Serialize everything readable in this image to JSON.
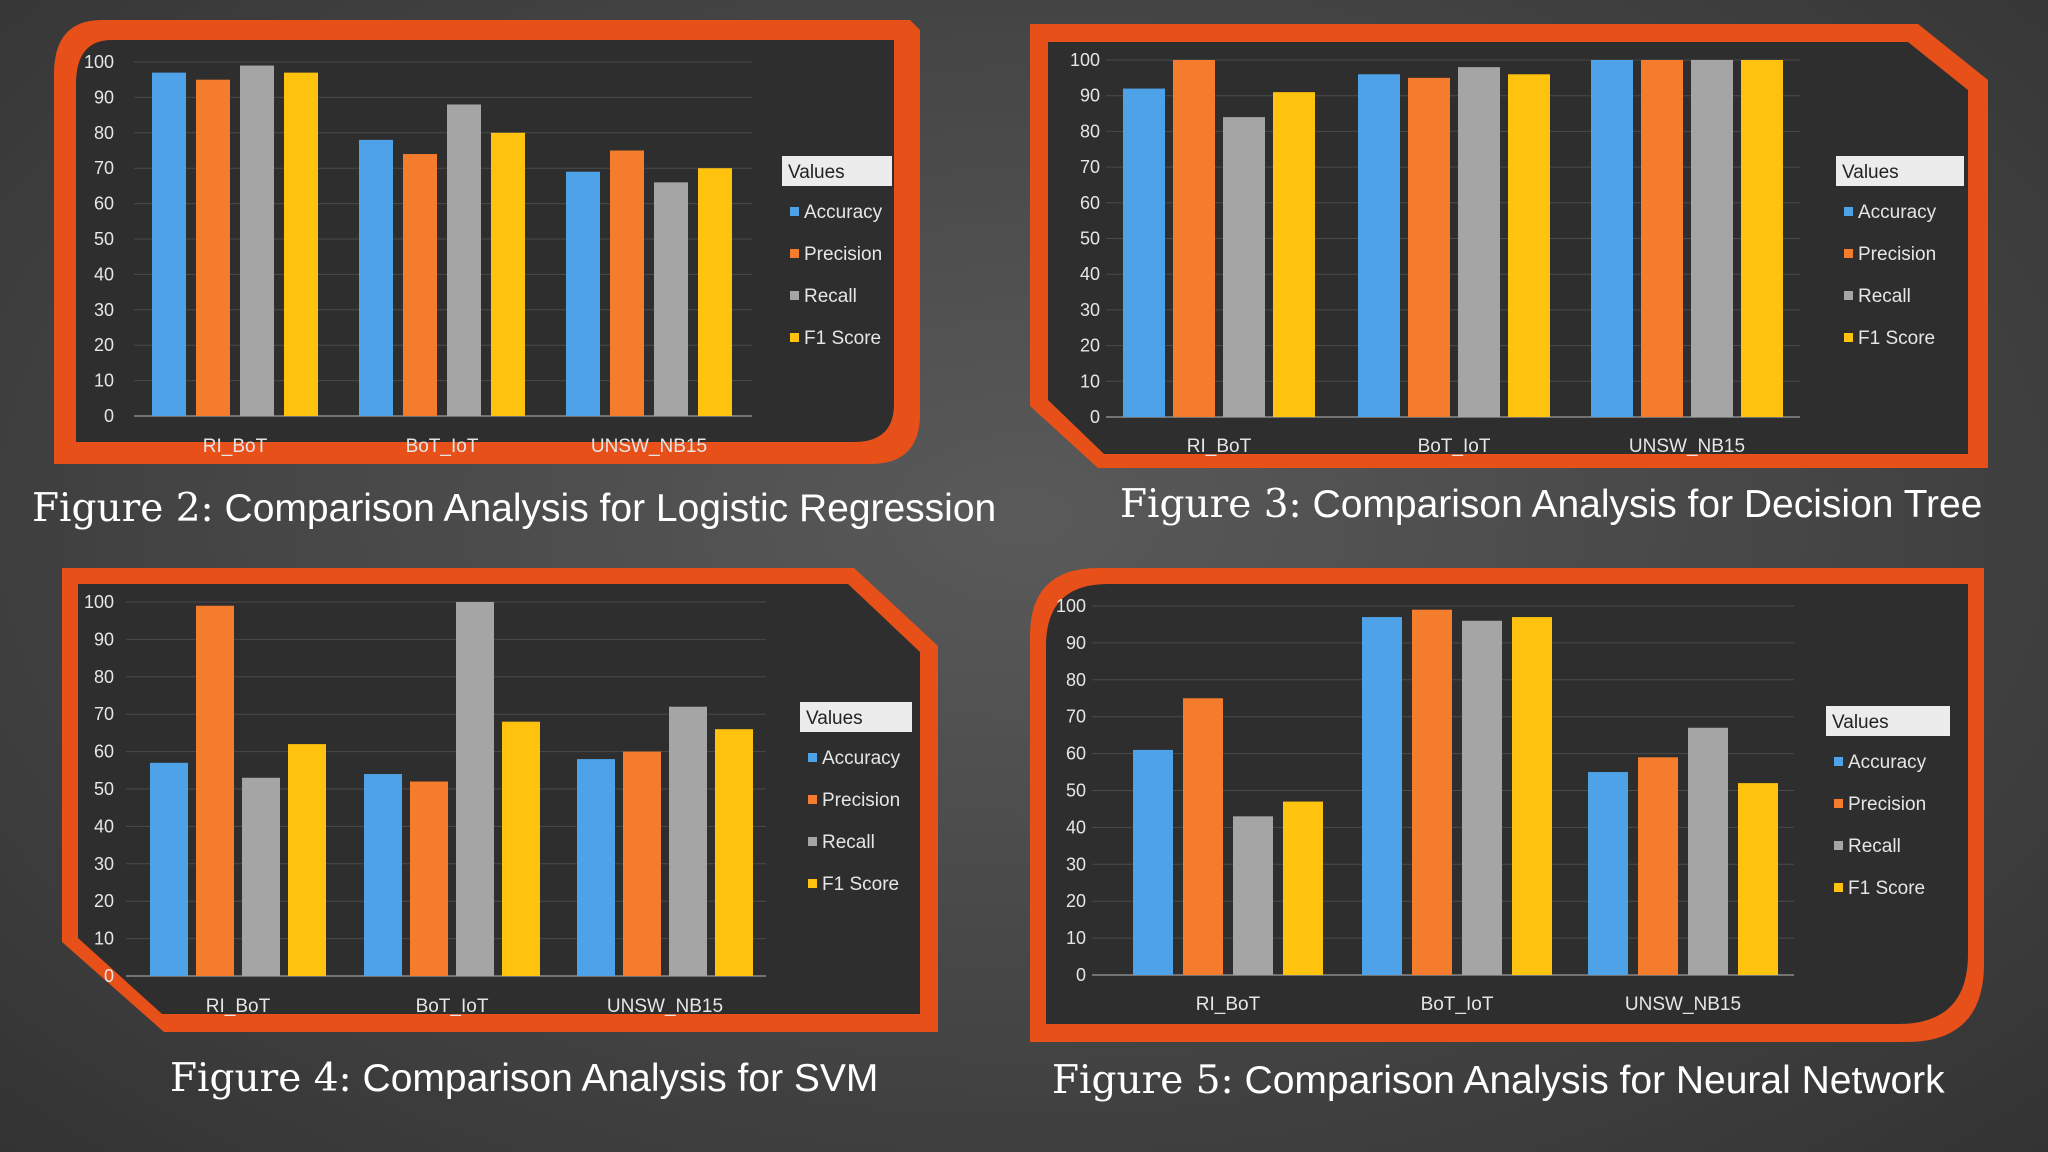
{
  "colors": {
    "background": "#444444",
    "frame": "#e8501a",
    "panel": "#2e2e2e",
    "grid": "#4a4a4a",
    "text": "#e6e6e6",
    "legend_title_bg": "#ececec",
    "legend_title_text": "#222222"
  },
  "series_colors": [
    "#4ea3e8",
    "#f47c2c",
    "#a5a5a5",
    "#ffc20e"
  ],
  "figures": [
    {
      "number": "Figure 2:",
      "title": "Comparison Analysis for Logistic Regression"
    },
    {
      "number": "Figure 3:",
      "title": "Comparison Analysis for Decision Tree"
    },
    {
      "number": "Figure 4:",
      "title": "Comparison Analysis for SVM"
    },
    {
      "number": "Figure 5:",
      "title": "Comparison Analysis for Neural Network"
    }
  ],
  "chart_data": [
    {
      "type": "bar",
      "title": "Comparison Analysis for Logistic Regression",
      "categories": [
        "RI_BoT",
        "BoT_IoT",
        "UNSW_NB15"
      ],
      "series": [
        {
          "name": "Accuracy",
          "values": [
            97,
            78,
            69
          ]
        },
        {
          "name": "Precision",
          "values": [
            95,
            74,
            75
          ]
        },
        {
          "name": "Recall",
          "values": [
            99,
            88,
            66
          ]
        },
        {
          "name": "F1 Score",
          "values": [
            97,
            80,
            70
          ]
        }
      ],
      "ylim": [
        0,
        100
      ],
      "yticks": [
        "0",
        "10",
        "20",
        "30",
        "40",
        "50",
        "60",
        "70",
        "80",
        "90",
        "100"
      ],
      "legend_title": "Values",
      "legend_position": "right",
      "xlabel": "",
      "ylabel": ""
    },
    {
      "type": "bar",
      "title": "Comparison Analysis for Decision Tree",
      "categories": [
        "RI_BoT",
        "BoT_IoT",
        "UNSW_NB15"
      ],
      "series": [
        {
          "name": "Accuracy",
          "values": [
            92,
            96,
            100
          ]
        },
        {
          "name": "Precision",
          "values": [
            100,
            95,
            100
          ]
        },
        {
          "name": "Recall",
          "values": [
            84,
            98,
            100
          ]
        },
        {
          "name": "F1 Score",
          "values": [
            91,
            96,
            100
          ]
        }
      ],
      "ylim": [
        0,
        100
      ],
      "yticks": [
        "0",
        "10",
        "20",
        "30",
        "40",
        "50",
        "60",
        "70",
        "80",
        "90",
        "100"
      ],
      "legend_title": "Values",
      "legend_position": "right",
      "xlabel": "",
      "ylabel": ""
    },
    {
      "type": "bar",
      "title": "Comparison Analysis for SVM",
      "categories": [
        "RI_BoT",
        "BoT_IoT",
        "UNSW_NB15"
      ],
      "series": [
        {
          "name": "Accuracy",
          "values": [
            57,
            54,
            58
          ]
        },
        {
          "name": "Precision",
          "values": [
            99,
            52,
            60
          ]
        },
        {
          "name": "Recall",
          "values": [
            53,
            100,
            72
          ]
        },
        {
          "name": "F1 Score",
          "values": [
            62,
            68,
            66
          ]
        }
      ],
      "ylim": [
        0,
        100
      ],
      "yticks": [
        "0",
        "10",
        "20",
        "30",
        "40",
        "50",
        "60",
        "70",
        "80",
        "90",
        "100"
      ],
      "legend_title": "Values",
      "legend_position": "right",
      "xlabel": "",
      "ylabel": ""
    },
    {
      "type": "bar",
      "title": "Comparison Analysis for Neural Network",
      "categories": [
        "RI_BoT",
        "BoT_IoT",
        "UNSW_NB15"
      ],
      "series": [
        {
          "name": "Accuracy",
          "values": [
            61,
            97,
            55
          ]
        },
        {
          "name": "Precision",
          "values": [
            75,
            99,
            59
          ]
        },
        {
          "name": "Recall",
          "values": [
            43,
            96,
            67
          ]
        },
        {
          "name": "F1 Score",
          "values": [
            47,
            97,
            52
          ]
        }
      ],
      "ylim": [
        0,
        100
      ],
      "yticks": [
        "0",
        "10",
        "20",
        "30",
        "40",
        "50",
        "60",
        "70",
        "80",
        "90",
        "100"
      ],
      "legend_title": "Values",
      "legend_position": "right",
      "xlabel": "",
      "ylabel": ""
    }
  ]
}
